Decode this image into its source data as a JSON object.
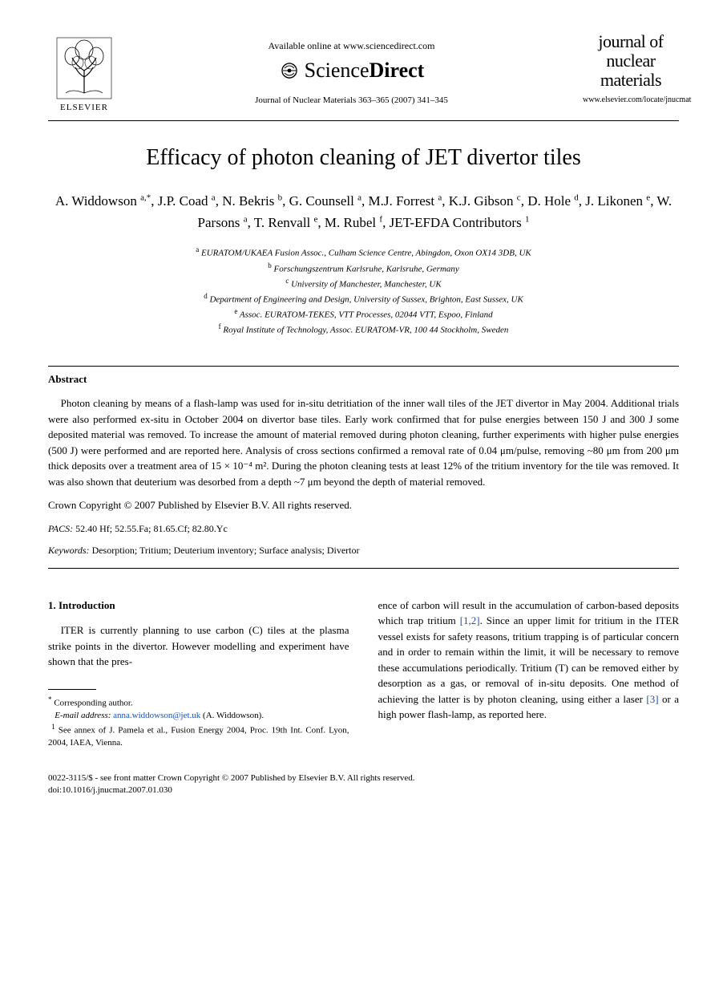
{
  "header": {
    "available_online": "Available online at www.sciencedirect.com",
    "sciencedirect_prefix": "Science",
    "sciencedirect_suffix": "Direct",
    "journal_ref": "Journal of Nuclear Materials 363–365 (2007) 341–345",
    "elsevier_label": "ELSEVIER",
    "journal_logo_l1": "journal of",
    "journal_logo_l2": "nuclear",
    "journal_logo_l3": "materials",
    "journal_url": "www.elsevier.com/locate/jnucmat"
  },
  "title": "Efficacy of photon cleaning of JET divertor tiles",
  "authors_html": "A. Widdowson <sup>a,*</sup>, J.P. Coad <sup>a</sup>, N. Bekris <sup>b</sup>, G. Counsell <sup>a</sup>, M.J. Forrest <sup>a</sup>, K.J. Gibson <sup>c</sup>, D. Hole <sup>d</sup>, J. Likonen <sup>e</sup>, W. Parsons <sup>a</sup>, T. Renvall <sup>e</sup>, M. Rubel <sup>f</sup>, JET-EFDA Contributors <sup>1</sup>",
  "affiliations": [
    {
      "sup": "a",
      "text": "EURATOM/UKAEA Fusion Assoc., Culham Science Centre, Abingdon, Oxon OX14 3DB, UK"
    },
    {
      "sup": "b",
      "text": "Forschungszentrum Karlsruhe, Karlsruhe, Germany"
    },
    {
      "sup": "c",
      "text": "University of Manchester, Manchester, UK"
    },
    {
      "sup": "d",
      "text": "Department of Engineering and Design, University of Sussex, Brighton, East Sussex, UK"
    },
    {
      "sup": "e",
      "text": "Assoc. EURATOM-TEKES, VTT Processes, 02044 VTT, Espoo, Finland"
    },
    {
      "sup": "f",
      "text": "Royal Institute of Technology, Assoc. EURATOM-VR, 100 44 Stockholm, Sweden"
    }
  ],
  "abstract": {
    "heading": "Abstract",
    "body": "Photon cleaning by means of a flash-lamp was used for in-situ detritiation of the inner wall tiles of the JET divertor in May 2004. Additional trials were also performed ex-situ in October 2004 on divertor base tiles. Early work confirmed that for pulse energies between 150 J and 300 J some deposited material was removed. To increase the amount of material removed during photon cleaning, further experiments with higher pulse energies (500 J) were performed and are reported here. Analysis of cross sections confirmed a removal rate of 0.04 μm/pulse, removing ~80 μm from 200 μm thick deposits over a treatment area of 15 × 10⁻⁴ m². During the photon cleaning tests at least 12% of the tritium inventory for the tile was removed. It was also shown that deuterium was desorbed from a depth ~7 μm beyond the depth of material removed.",
    "copyright": "Crown Copyright © 2007 Published by Elsevier B.V. All rights reserved."
  },
  "pacs": {
    "label": "PACS:",
    "vals": " 52.40 Hf; 52.55.Fa; 81.65.Cf; 82.80.Yc"
  },
  "keywords": {
    "label": "Keywords:",
    "vals": " Desorption; Tritium; Deuterium inventory; Surface analysis; Divertor"
  },
  "section1": {
    "heading": "1. Introduction",
    "left_para": "ITER is currently planning to use carbon (C) tiles at the plasma strike points in the divertor. However modelling and experiment have shown that the pres-",
    "right_para_pre": "ence of carbon will result in the accumulation of carbon-based deposits which trap tritium ",
    "ref12": "[1,2]",
    "right_para_mid": ". Since an upper limit for tritium in the ITER vessel exists for safety reasons, tritium trapping is of particular concern and in order to remain within the limit, it will be necessary to remove these accumulations periodically. Tritium (T) can be removed either by desorption as a gas, or removal of in-situ deposits. One method of achieving the latter is by photon cleaning, using either a laser ",
    "ref3": "[3]",
    "right_para_post": " or a high power flash-lamp, as reported here."
  },
  "footnotes": {
    "corresponding": "Corresponding author.",
    "email_label": "E-mail address:",
    "email": "anna.widdowson@jet.uk",
    "email_attr": " (A. Widdowson).",
    "note1": "See annex of J. Pamela et al., Fusion Energy 2004, Proc. 19th Int. Conf. Lyon, 2004, IAEA, Vienna."
  },
  "footer": {
    "line1": "0022-3115/$ - see front matter Crown Copyright © 2007 Published by Elsevier B.V. All rights reserved.",
    "line2": "doi:10.1016/j.jnucmat.2007.01.030"
  },
  "colors": {
    "link": "#1a4fb3",
    "text": "#000000",
    "background": "#ffffff"
  }
}
